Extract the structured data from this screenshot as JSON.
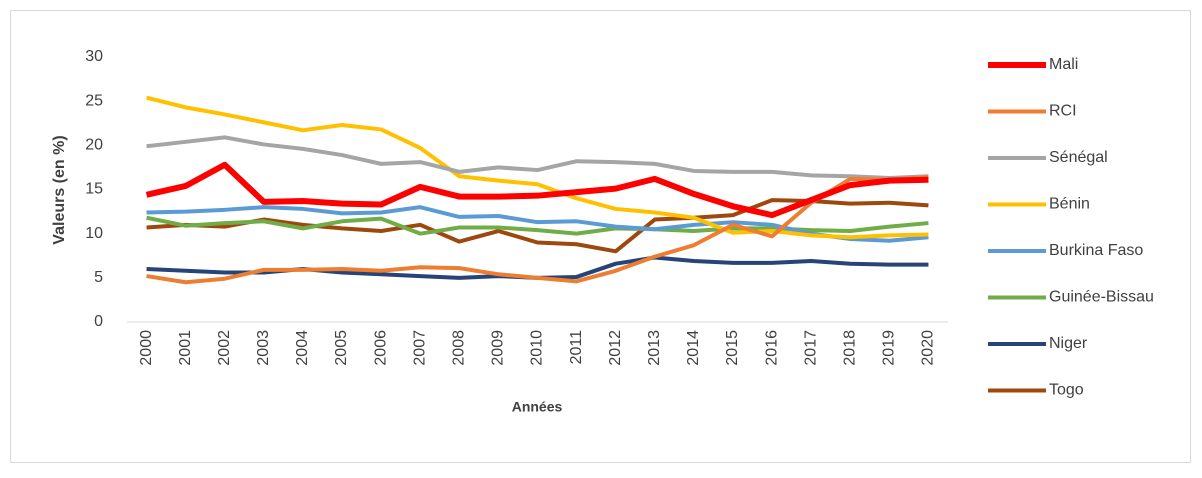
{
  "chart_data": {
    "type": "line",
    "y_label": "Valeurs (en %)",
    "x_label": "Années",
    "categories": [
      "2000",
      "2001",
      "2002",
      "2003",
      "2004",
      "2005",
      "2006",
      "2007",
      "2008",
      "2009",
      "2010",
      "2011",
      "2012",
      "2013",
      "2014",
      "2015",
      "2016",
      "2017",
      "2018",
      "2019",
      "2020"
    ],
    "ylim": [
      0,
      30
    ],
    "yticks": [
      0,
      5,
      10,
      15,
      20,
      25,
      30
    ],
    "grid": false,
    "legend": "right",
    "series": [
      {
        "name": "Mali",
        "color": "#ff0000",
        "values": [
          14.4,
          15.4,
          17.8,
          13.6,
          13.7,
          13.4,
          13.3,
          15.3,
          14.2,
          14.2,
          14.3,
          14.7,
          15.1,
          16.2,
          14.5,
          13.1,
          12.1,
          13.8,
          15.5,
          16.0,
          16.1
        ]
      },
      {
        "name": "RCI",
        "color": "#ed7d31",
        "values": [
          5.2,
          4.5,
          4.9,
          5.9,
          5.9,
          6.0,
          5.8,
          6.2,
          6.1,
          5.4,
          5.0,
          4.6,
          5.8,
          7.4,
          8.7,
          11.0,
          9.7,
          13.5,
          16.2,
          16.1,
          16.4
        ]
      },
      {
        "name": "Sénégal",
        "color": "#a5a5a5",
        "values": [
          19.9,
          20.4,
          20.9,
          20.1,
          19.6,
          18.9,
          17.9,
          18.1,
          17.0,
          17.5,
          17.2,
          18.2,
          18.1,
          17.9,
          17.1,
          17.0,
          17.0,
          16.6,
          16.5,
          16.3,
          16.5
        ]
      },
      {
        "name": "Bénin",
        "color": "#ffc000",
        "values": [
          25.4,
          24.3,
          23.5,
          22.6,
          21.7,
          22.3,
          21.8,
          19.7,
          16.5,
          16.0,
          15.6,
          14.0,
          12.8,
          12.4,
          11.8,
          10.1,
          10.3,
          9.8,
          9.6,
          9.8,
          9.9
        ]
      },
      {
        "name": "Burkina Faso",
        "color": "#5b9bd5",
        "values": [
          12.4,
          12.5,
          12.7,
          13.0,
          12.8,
          12.3,
          12.4,
          13.0,
          11.9,
          12.0,
          11.3,
          11.4,
          10.8,
          10.5,
          11.0,
          11.3,
          11.0,
          10.0,
          9.4,
          9.2,
          9.6
        ]
      },
      {
        "name": "Guinée-Bissau",
        "color": "#70ad47",
        "values": [
          11.8,
          10.9,
          11.2,
          11.4,
          10.6,
          11.4,
          11.7,
          10.0,
          10.7,
          10.7,
          10.4,
          10.0,
          10.6,
          10.5,
          10.3,
          10.6,
          10.6,
          10.4,
          10.3,
          10.8,
          11.2
        ]
      },
      {
        "name": "Niger",
        "color": "#264478",
        "values": [
          6.0,
          5.8,
          5.6,
          5.6,
          6.0,
          5.6,
          5.4,
          5.2,
          5.0,
          5.2,
          5.0,
          5.1,
          6.6,
          7.3,
          6.9,
          6.7,
          6.7,
          6.9,
          6.6,
          6.5,
          6.5
        ]
      },
      {
        "name": "Togo",
        "color": "#9e480e",
        "values": [
          10.7,
          11.0,
          10.8,
          11.6,
          11.0,
          10.6,
          10.3,
          11.0,
          9.1,
          10.3,
          9.0,
          8.8,
          8.0,
          11.6,
          11.8,
          12.1,
          13.8,
          13.7,
          13.4,
          13.5,
          13.2
        ]
      }
    ]
  }
}
